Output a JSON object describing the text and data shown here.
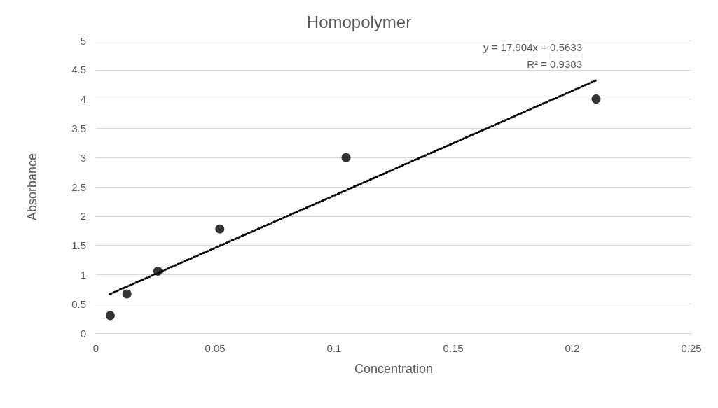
{
  "chart_data": {
    "type": "scatter",
    "title": "Homopolymer",
    "xlabel": "Concentration",
    "ylabel": "Absorbance",
    "xlim": [
      0,
      0.25
    ],
    "xticks": [
      0,
      0.05,
      0.1,
      0.15,
      0.2,
      0.25
    ],
    "ylim": [
      0,
      5
    ],
    "yticks": [
      0,
      0.5,
      1,
      1.5,
      2,
      2.5,
      3,
      3.5,
      4,
      4.5,
      5
    ],
    "grid": "y",
    "marker": "circle",
    "annotations": [
      "y = 17.904x + 0.5633",
      "R² = 0.9383"
    ],
    "series": [
      {
        "color": "#000000",
        "x": [
          0.006,
          0.013,
          0.026,
          0.052,
          0.105,
          0.21
        ],
        "values": [
          0.3,
          0.67,
          1.06,
          1.78,
          3.0,
          4.0
        ]
      },
      {
        "type": "line",
        "marker": "none",
        "line_style": "dotted",
        "color": "#000000",
        "x": [
          0.006,
          0.21
        ],
        "values": [
          0.67,
          4.32
        ]
      }
    ]
  }
}
